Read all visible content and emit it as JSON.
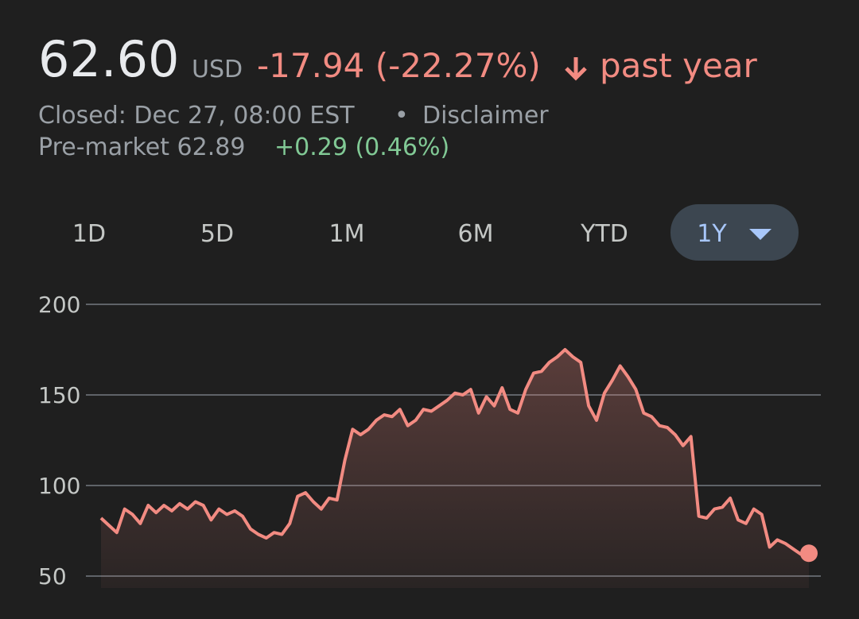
{
  "header": {
    "price": "62.60",
    "currency": "USD",
    "change": "-17.94 (-22.27%)",
    "period": "past year",
    "closed": "Closed: Dec 27, 08:00 EST",
    "separator": "•",
    "disclaimer": "Disclaimer",
    "premarket": "Pre-market 62.89",
    "premarket_change": "+0.29 (0.46%)"
  },
  "tabs": [
    "1D",
    "5D",
    "1M",
    "6M",
    "YTD",
    "1Y"
  ],
  "chart_data": {
    "type": "line",
    "color": "#f28b82",
    "grid": true,
    "ylim": [
      43.4,
      200
    ],
    "yticks": [
      50,
      100,
      150,
      200
    ],
    "values": [
      82,
      78,
      74,
      87,
      84,
      79,
      89,
      85,
      89,
      86,
      90,
      87,
      91,
      89,
      81,
      87,
      84,
      86,
      83,
      76,
      73,
      71,
      74,
      73,
      79,
      94,
      96,
      91,
      87,
      93,
      92,
      114,
      131,
      128,
      131,
      136,
      139,
      138,
      142,
      133,
      136,
      142,
      141,
      144,
      147,
      151,
      150,
      153,
      140,
      149,
      144,
      154,
      142,
      140,
      153,
      162,
      163,
      168,
      171,
      175,
      171,
      168,
      144,
      136,
      151,
      158,
      166,
      160,
      153,
      140,
      138,
      133,
      132,
      128,
      122,
      127,
      83,
      82,
      87,
      88,
      93,
      81,
      79,
      87,
      84,
      66,
      70,
      68,
      65,
      62,
      62.6
    ]
  }
}
